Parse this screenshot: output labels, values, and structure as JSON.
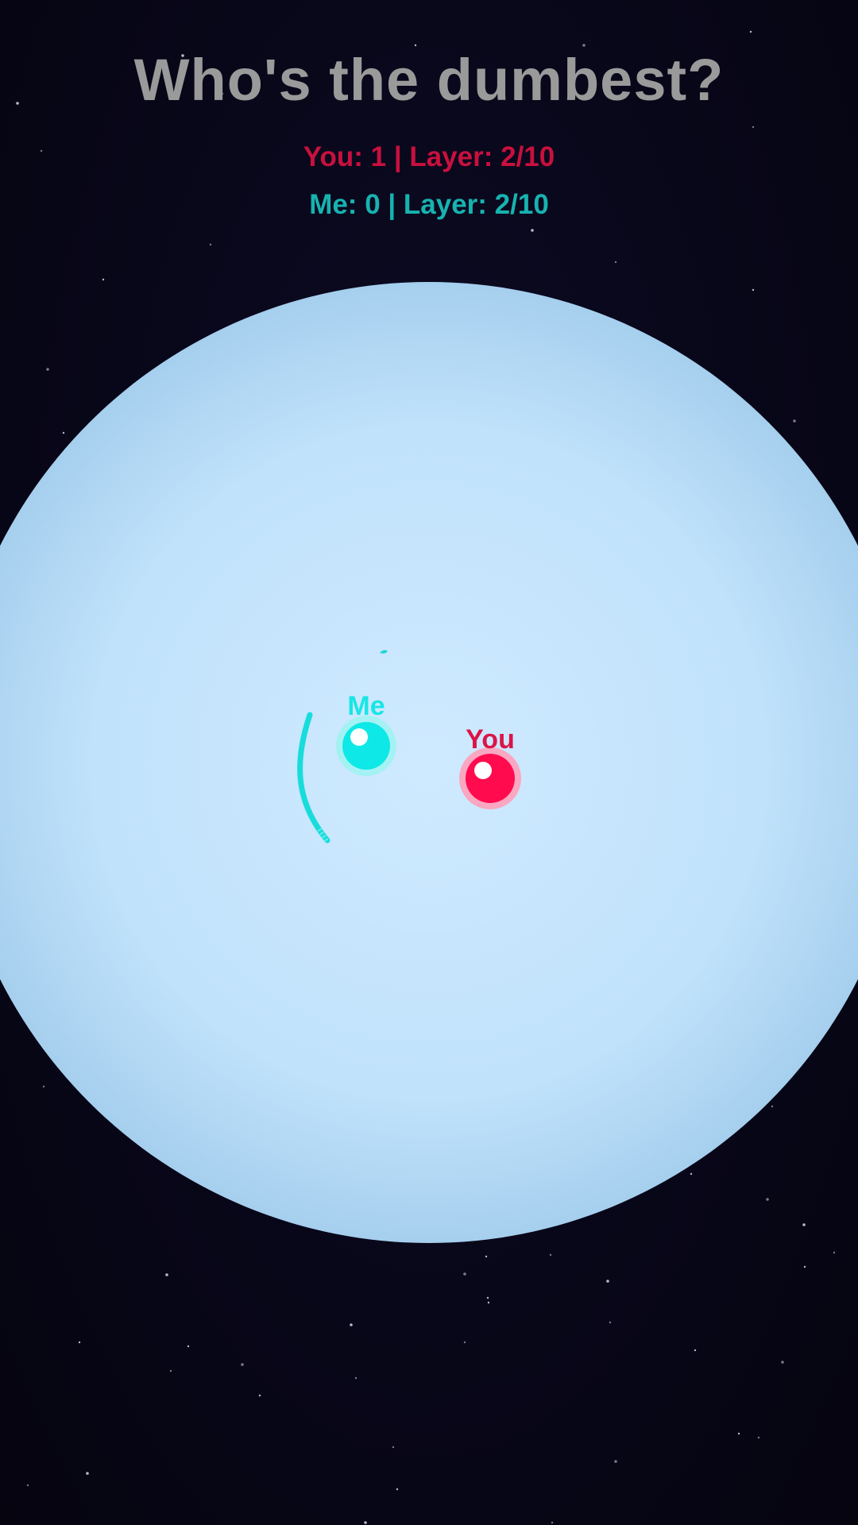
{
  "title": "Who's the dumbest?",
  "scores": {
    "you_line": "You: 1 | Layer: 2/10",
    "me_line": "Me: 0 | Layer: 2/10"
  },
  "players": {
    "me": {
      "label": "Me",
      "color": "#18e6e6",
      "ring": "#9cf3f1"
    },
    "you": {
      "label": "You",
      "color": "#ff0b4e",
      "ring": "#ffa0bb"
    }
  },
  "colors": {
    "arena_center": "#cfeaff",
    "arena_edge": "#a6d0f0",
    "you_score": "#c8103e",
    "me_score": "#17b3b0"
  }
}
